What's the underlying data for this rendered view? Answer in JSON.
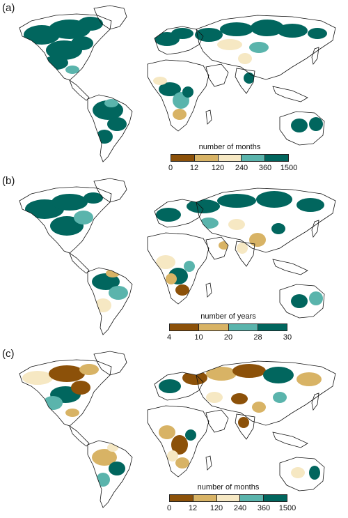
{
  "colors": {
    "c1": "#8c5109",
    "c2": "#d8b365",
    "c3": "#f6e8c3",
    "c4": "#5ab4ac",
    "c5": "#01665e",
    "outline": "#111111"
  },
  "panels": [
    {
      "label": "(a)",
      "legend": {
        "title": "number of months",
        "ticks": [
          "0",
          "12",
          "120",
          "240",
          "360",
          "1500"
        ]
      }
    },
    {
      "label": "(b)",
      "legend": {
        "title": "number of years",
        "ticks": [
          "4",
          "10",
          "20",
          "28",
          "30"
        ]
      }
    },
    {
      "label": "(c)",
      "legend": {
        "title": "number of months",
        "ticks": [
          "0",
          "12",
          "120",
          "240",
          "360",
          "1500"
        ]
      }
    }
  ]
}
